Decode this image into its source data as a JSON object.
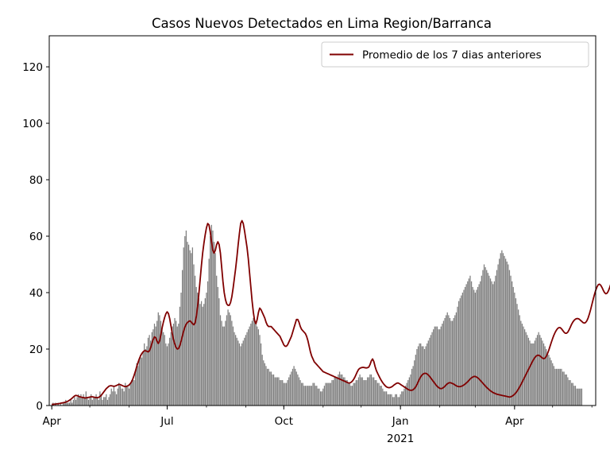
{
  "chart_data": {
    "type": "bar",
    "title": "Casos Nuevos Detectados en Lima Region/Barranca",
    "xlabel": "",
    "ylabel": "",
    "x_start": "2020-03-30",
    "x_end": "2021-06-04",
    "ylim": [
      0,
      131
    ],
    "yticks": [
      0,
      20,
      40,
      60,
      80,
      100,
      120
    ],
    "xticks": [
      {
        "date": "2020-04-01",
        "label": "Apr",
        "sublabel": ""
      },
      {
        "date": "2020-07-01",
        "label": "Jul",
        "sublabel": ""
      },
      {
        "date": "2020-10-01",
        "label": "Oct",
        "sublabel": ""
      },
      {
        "date": "2021-01-01",
        "label": "Jan",
        "sublabel": "2021"
      },
      {
        "date": "2021-04-01",
        "label": "Apr",
        "sublabel": ""
      }
    ],
    "grid": false,
    "legend": {
      "placement": "top-right",
      "entries": [
        "Promedio de los 7 dias anteriores"
      ]
    },
    "bar_color": "#808080",
    "line_color": "#800000",
    "series": [
      {
        "name": "Casos nuevos",
        "type": "bar",
        "start": "2020-04-01",
        "values": [
          0,
          1,
          0,
          1,
          0,
          1,
          0,
          1,
          0,
          1,
          1,
          2,
          1,
          1,
          1,
          2,
          1,
          2,
          3,
          2,
          3,
          4,
          3,
          4,
          3,
          4,
          3,
          5,
          3,
          2,
          3,
          4,
          2,
          3,
          3,
          4,
          3,
          2,
          5,
          4,
          2,
          3,
          3,
          4,
          2,
          3,
          4,
          6,
          5,
          7,
          5,
          4,
          6,
          8,
          7,
          6,
          6,
          5,
          8,
          7,
          7,
          6,
          8,
          9,
          10,
          9,
          12,
          15,
          14,
          16,
          18,
          17,
          19,
          22,
          20,
          21,
          24,
          25,
          23,
          26,
          27,
          29,
          28,
          30,
          33,
          32,
          30,
          28,
          26,
          25,
          22,
          21,
          22,
          24,
          26,
          28,
          29,
          31,
          30,
          28,
          29,
          35,
          40,
          48,
          56,
          60,
          62,
          58,
          57,
          55,
          54,
          56,
          50,
          46,
          42,
          40,
          38,
          36,
          37,
          35,
          36,
          38,
          40,
          44,
          52,
          60,
          64,
          62,
          58,
          54,
          46,
          42,
          38,
          32,
          30,
          28,
          28,
          30,
          32,
          34,
          33,
          32,
          30,
          28,
          26,
          25,
          24,
          23,
          22,
          21,
          22,
          23,
          24,
          25,
          26,
          27,
          28,
          29,
          30,
          31,
          30,
          29,
          28,
          27,
          25,
          22,
          18,
          16,
          15,
          14,
          13,
          13,
          12,
          12,
          11,
          11,
          10,
          10,
          10,
          10,
          9,
          9,
          9,
          8,
          8,
          8,
          9,
          10,
          11,
          12,
          13,
          14,
          13,
          12,
          11,
          10,
          9,
          8,
          8,
          7,
          7,
          7,
          7,
          7,
          7,
          7,
          8,
          8,
          7,
          7,
          6,
          6,
          5,
          5,
          6,
          7,
          8,
          8,
          8,
          8,
          8,
          9,
          9,
          10,
          10,
          10,
          11,
          12,
          11,
          11,
          10,
          10,
          9,
          9,
          8,
          8,
          7,
          7,
          8,
          8,
          9,
          9,
          10,
          11,
          10,
          10,
          9,
          9,
          9,
          10,
          10,
          11,
          11,
          10,
          10,
          9,
          9,
          8,
          8,
          7,
          7,
          6,
          5,
          5,
          5,
          4,
          4,
          4,
          4,
          3,
          3,
          4,
          4,
          3,
          3,
          4,
          5,
          5,
          6,
          7,
          8,
          9,
          10,
          11,
          13,
          14,
          16,
          18,
          20,
          21,
          22,
          22,
          21,
          21,
          20,
          21,
          22,
          23,
          24,
          25,
          26,
          27,
          28,
          28,
          28,
          27,
          27,
          28,
          29,
          30,
          31,
          32,
          33,
          32,
          31,
          30,
          30,
          31,
          32,
          33,
          35,
          37,
          38,
          39,
          40,
          41,
          42,
          43,
          44,
          45,
          46,
          44,
          42,
          41,
          40,
          41,
          42,
          43,
          44,
          46,
          48,
          50,
          49,
          48,
          47,
          46,
          45,
          44,
          43,
          44,
          46,
          48,
          50,
          52,
          54,
          55,
          54,
          53,
          52,
          51,
          50,
          48,
          46,
          44,
          42,
          40,
          38,
          36,
          34,
          32,
          30,
          29,
          28,
          27,
          26,
          25,
          24,
          23,
          22,
          22,
          22,
          23,
          24,
          25,
          26,
          25,
          24,
          23,
          22,
          21,
          20,
          19,
          18,
          17,
          16,
          15,
          14,
          13,
          13,
          13,
          13,
          13,
          13,
          12,
          12,
          11,
          11,
          10,
          9,
          9,
          8,
          8,
          7,
          7,
          6,
          6,
          6,
          6,
          6
        ]
      },
      {
        "name": "Promedio de los 7 dias anteriores",
        "type": "line",
        "start": "2020-04-01",
        "values": [
          0.4,
          0.4,
          0.5,
          0.5,
          0.6,
          0.6,
          0.7,
          0.8,
          0.9,
          1.0,
          1.1,
          1.2,
          1.4,
          1.6,
          1.9,
          2.2,
          2.6,
          3.0,
          3.4,
          3.6,
          3.5,
          3.3,
          3.1,
          3.0,
          2.9,
          2.8,
          2.7,
          2.7,
          2.8,
          2.9,
          3.0,
          3.1,
          3.1,
          3.0,
          2.9,
          2.8,
          2.8,
          2.9,
          3.2,
          3.6,
          4.2,
          4.8,
          5.4,
          6.0,
          6.4,
          6.8,
          7.0,
          7.0,
          6.9,
          6.8,
          6.9,
          7.1,
          7.3,
          7.5,
          7.4,
          7.2,
          7.0,
          6.8,
          6.7,
          6.8,
          7.0,
          7.3,
          7.8,
          8.5,
          9.5,
          10.8,
          12.2,
          13.8,
          15.2,
          16.5,
          17.6,
          18.4,
          19.0,
          19.4,
          19.4,
          19.2,
          19.0,
          19.4,
          20.5,
          22.0,
          23.4,
          24.3,
          24.0,
          22.8,
          22.0,
          22.8,
          25.0,
          27.5,
          29.5,
          31.2,
          32.5,
          33.2,
          32.6,
          30.8,
          28.2,
          25.6,
          23.4,
          21.8,
          20.6,
          20.0,
          20.2,
          21.2,
          22.8,
          24.6,
          26.4,
          27.8,
          28.8,
          29.4,
          29.8,
          30.0,
          29.6,
          29.0,
          28.6,
          29.2,
          31.5,
          35.0,
          39.5,
          44.5,
          49.5,
          54.0,
          57.5,
          60.5,
          63.0,
          64.5,
          64.0,
          61.5,
          58.0,
          55.0,
          54.0,
          55.0,
          57.0,
          58.0,
          57.0,
          54.0,
          49.0,
          44.0,
          40.0,
          37.5,
          36.0,
          35.5,
          35.5,
          36.5,
          38.5,
          41.5,
          45.0,
          48.5,
          52.5,
          57.0,
          61.0,
          64.5,
          65.5,
          64.5,
          62.0,
          59.0,
          56.0,
          52.0,
          47.0,
          42.0,
          37.0,
          33.0,
          30.0,
          29.0,
          30.5,
          33.0,
          34.5,
          34.0,
          33.0,
          32.0,
          31.0,
          29.5,
          28.5,
          28.0,
          28.0,
          28.0,
          27.5,
          27.0,
          26.5,
          26.0,
          25.5,
          25.0,
          24.5,
          23.5,
          22.5,
          21.5,
          21.0,
          21.0,
          21.5,
          22.5,
          23.5,
          24.5,
          26.0,
          27.5,
          29.0,
          30.5,
          30.5,
          29.5,
          28.0,
          27.0,
          26.5,
          26.0,
          25.5,
          24.5,
          23.0,
          21.0,
          19.0,
          17.5,
          16.5,
          15.5,
          15.0,
          14.5,
          14.0,
          13.5,
          13.0,
          12.5,
          12.0,
          11.8,
          11.6,
          11.4,
          11.2,
          11.0,
          10.8,
          10.6,
          10.4,
          10.2,
          10.0,
          9.8,
          9.6,
          9.4,
          9.2,
          9.0,
          8.8,
          8.6,
          8.4,
          8.2,
          8.0,
          8.0,
          8.2,
          8.6,
          9.2,
          10.0,
          11.0,
          12.0,
          12.8,
          13.2,
          13.4,
          13.5,
          13.5,
          13.4,
          13.3,
          13.4,
          13.6,
          14.5,
          15.8,
          16.5,
          15.6,
          13.8,
          12.4,
          11.4,
          10.5,
          9.6,
          8.8,
          8.1,
          7.5,
          7.0,
          6.6,
          6.4,
          6.3,
          6.4,
          6.6,
          6.9,
          7.3,
          7.6,
          7.9,
          8.0,
          7.8,
          7.5,
          7.2,
          6.9,
          6.6,
          6.3,
          6.0,
          5.7,
          5.5,
          5.4,
          5.4,
          5.6,
          6.0,
          6.6,
          7.4,
          8.4,
          9.4,
          10.2,
          10.8,
          11.2,
          11.4,
          11.4,
          11.2,
          10.8,
          10.3,
          9.7,
          9.1,
          8.5,
          7.9,
          7.3,
          6.8,
          6.4,
          6.1,
          6.0,
          6.1,
          6.4,
          6.8,
          7.3,
          7.7,
          8.0,
          8.1,
          8.0,
          7.8,
          7.6,
          7.3,
          7.0,
          6.8,
          6.7,
          6.7,
          6.8,
          7.0,
          7.3,
          7.6,
          8.0,
          8.4,
          8.9,
          9.4,
          9.8,
          10.1,
          10.3,
          10.3,
          10.1,
          9.8,
          9.4,
          8.9,
          8.4,
          7.9,
          7.4,
          6.9,
          6.4,
          6.0,
          5.6,
          5.2,
          4.9,
          4.6,
          4.4,
          4.2,
          4.0,
          3.9,
          3.8,
          3.7,
          3.6,
          3.5,
          3.4,
          3.3,
          3.2,
          3.1,
          3.0,
          3.1,
          3.3,
          3.6,
          4.0,
          4.5,
          5.1,
          5.8,
          6.6,
          7.4,
          8.3,
          9.2,
          10.1,
          11.0,
          11.9,
          12.8,
          13.7,
          14.6,
          15.5,
          16.3,
          17.0,
          17.5,
          17.8,
          17.8,
          17.6,
          17.2,
          16.8,
          16.6,
          16.8,
          17.4,
          18.4,
          19.6,
          21.0,
          22.4,
          23.7,
          24.9,
          25.9,
          26.7,
          27.3,
          27.6,
          27.6,
          27.2,
          26.6,
          26.0,
          25.6,
          25.6,
          26.0,
          26.8,
          27.8,
          28.8,
          29.6,
          30.2,
          30.6,
          30.8,
          30.8,
          30.6,
          30.2,
          29.8,
          29.4,
          29.2,
          29.4,
          30.0,
          31.0,
          32.4,
          34.0,
          35.8,
          37.6,
          39.3,
          40.8,
          42.0,
          42.8,
          43.0,
          42.6,
          41.8,
          40.8,
          40.0,
          39.6,
          39.8,
          40.6,
          41.8,
          43.2,
          44.6,
          45.8,
          46.6,
          47.0,
          47.0,
          46.6,
          45.8,
          44.8,
          43.6,
          42.4,
          41.4,
          40.8,
          40.6,
          41.0,
          42.0,
          43.4,
          45.2,
          47.2,
          49.2,
          50.8,
          51.6,
          51.2,
          49.8,
          47.8,
          45.6,
          43.6,
          42.2,
          41.4,
          41.4,
          42.2,
          43.8,
          46.0,
          48.6,
          51.4,
          54.0,
          56.0,
          57.0,
          56.8,
          55.4,
          53.2,
          50.6,
          48.0,
          45.8,
          44.4,
          43.8,
          44.2,
          45.6,
          47.8,
          50.6,
          53.6,
          56.2,
          58.0,
          58.6,
          57.8,
          55.6,
          52.4,
          48.6,
          44.6,
          40.8,
          37.4,
          34.6,
          32.2,
          30.2,
          28.4,
          26.8,
          25.4,
          24.0,
          22.6,
          21.4,
          20.4,
          19.6,
          19.0,
          18.8,
          18.8,
          19.2,
          19.8,
          20.6,
          21.4,
          22.2,
          23.0,
          23.6,
          24.0,
          24.2,
          24.0,
          23.6,
          23.0,
          22.4,
          21.8,
          21.4,
          21.2,
          21.2,
          21.4,
          21.6,
          21.8,
          21.8,
          21.6,
          21.2,
          20.6,
          19.8,
          18.8,
          17.8,
          16.8,
          15.8,
          14.8,
          13.8,
          12.9,
          12.1,
          11.5,
          11.1,
          10.9,
          10.9,
          11.1,
          11.4,
          11.8,
          12.2,
          12.6,
          12.9,
          13.1,
          13.2,
          13.1,
          12.9,
          12.5,
          12.0,
          11.4,
          10.7,
          10.0,
          9.2,
          8.4,
          7.7,
          7.1,
          6.6,
          6.3,
          6.1,
          6.0,
          6.0,
          6.0,
          6.0
        ]
      }
    ]
  }
}
